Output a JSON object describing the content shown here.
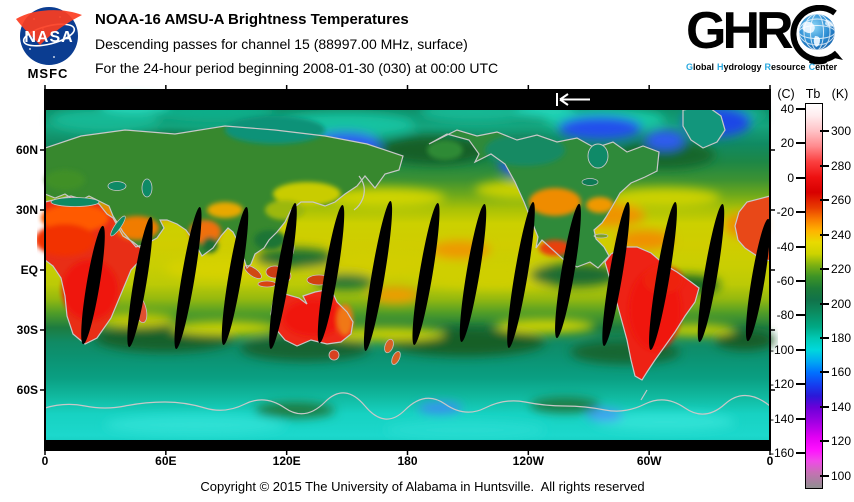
{
  "header": {
    "nasa": {
      "wordmark": "NASA",
      "center": "MSFC"
    },
    "title": "NOAA-16 AMSU-A Brightness Temperatures",
    "line2": "Descending passes for channel 15 (88997.00 MHz, surface)",
    "line3": "For the 24-hour period beginning 2008-01-30 (030) at 00:00 UTC"
  },
  "ghrc": {
    "wordmark_prefix": "GHR",
    "tagline": [
      {
        "head": "G",
        "rest": "lobal"
      },
      {
        "head": "H",
        "rest": "ydrology"
      },
      {
        "head": "R",
        "rest": "esource"
      },
      {
        "head": "C",
        "rest": "enter"
      }
    ],
    "accent_color": "#2aa9df"
  },
  "map": {
    "lat_ticks": [
      "60N",
      "30N",
      "EQ",
      "30S",
      "60S"
    ],
    "lon_ticks": [
      "0",
      "60E",
      "120E",
      "180",
      "120W",
      "60W",
      "0"
    ],
    "swath_gaps": [
      [
        48,
        195,
        60
      ],
      [
        95,
        192,
        66
      ],
      [
        143,
        188,
        72
      ],
      [
        190,
        186,
        70
      ],
      [
        238,
        186,
        74
      ],
      [
        286,
        184,
        70
      ],
      [
        333,
        186,
        76
      ],
      [
        381,
        184,
        72
      ],
      [
        428,
        183,
        70
      ],
      [
        476,
        185,
        74
      ],
      [
        523,
        181,
        68
      ],
      [
        571,
        184,
        73
      ],
      [
        618,
        186,
        75
      ],
      [
        666,
        183,
        70
      ],
      [
        713,
        190,
        62
      ]
    ]
  },
  "colorbar": {
    "unit_celsius": "(C)",
    "label": "Tb",
    "unit_kelvin": "(K)",
    "celsius_ticks": [
      40,
      20,
      0,
      -20,
      -40,
      -60,
      -80,
      -100,
      -120,
      -140,
      -160
    ],
    "kelvin_ticks": [
      300,
      280,
      260,
      240,
      220,
      200,
      180,
      160,
      140,
      120,
      100
    ],
    "scale_top_kelvin": 316.5,
    "scale_bottom_kelvin": 93.5,
    "gradient_stops": [
      [
        "0%",
        "#ffffff"
      ],
      [
        "3%",
        "#ffecee"
      ],
      [
        "7%",
        "#ffc2c6"
      ],
      [
        "11%",
        "#ff8a8e"
      ],
      [
        "15%",
        "#fb4040"
      ],
      [
        "19%",
        "#ee1111"
      ],
      [
        "23%",
        "#d80000"
      ],
      [
        "27%",
        "#e83c00"
      ],
      [
        "30%",
        "#f97b00"
      ],
      [
        "33%",
        "#ffb300"
      ],
      [
        "36%",
        "#e9da00"
      ],
      [
        "39%",
        "#cdd300"
      ],
      [
        "42%",
        "#7cb012"
      ],
      [
        "45%",
        "#3c9326"
      ],
      [
        "48%",
        "#1d7c38"
      ],
      [
        "51%",
        "#11734a"
      ],
      [
        "54%",
        "#0c8a5e"
      ],
      [
        "58%",
        "#00a884"
      ],
      [
        "61%",
        "#00c9b4"
      ],
      [
        "64%",
        "#00d8dc"
      ],
      [
        "67%",
        "#00aaf2"
      ],
      [
        "70%",
        "#0070ff"
      ],
      [
        "73%",
        "#1440f0"
      ],
      [
        "76%",
        "#2a18d8"
      ],
      [
        "79%",
        "#6a00d8"
      ],
      [
        "83%",
        "#a400e4"
      ],
      [
        "87%",
        "#e400f4"
      ],
      [
        "90%",
        "#ff10ff"
      ],
      [
        "93%",
        "#f04ae8"
      ],
      [
        "96%",
        "#c671b4"
      ],
      [
        "100%",
        "#8f8f8f"
      ]
    ]
  },
  "footer": {
    "copyright": "Copyright © 2015 The University of Alabama in Huntsville.  All rights reserved"
  }
}
